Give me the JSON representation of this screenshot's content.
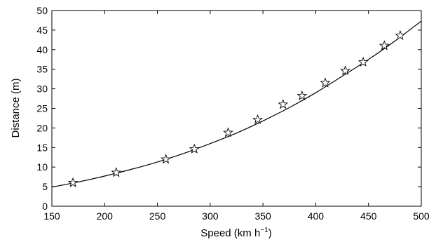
{
  "chart_data": {
    "type": "scatter",
    "xlabel": "Speed (km h",
    "xlabel_superscript": "−1",
    "xlabel_suffix": ")",
    "ylabel": "Distance (m)",
    "xlim": [
      150,
      500
    ],
    "ylim": [
      0,
      50
    ],
    "xticks": [
      150,
      200,
      250,
      300,
      350,
      400,
      450,
      500
    ],
    "yticks": [
      0,
      5,
      10,
      15,
      20,
      25,
      30,
      35,
      40,
      45,
      50
    ],
    "grid": false,
    "legend": "none",
    "series": [
      {
        "type": "scatter",
        "marker": "star",
        "points": [
          {
            "x": 170,
            "y": 6.0
          },
          {
            "x": 211,
            "y": 8.6
          },
          {
            "x": 258,
            "y": 12.0
          },
          {
            "x": 285,
            "y": 14.6
          },
          {
            "x": 317,
            "y": 18.8
          },
          {
            "x": 345,
            "y": 22.1
          },
          {
            "x": 369,
            "y": 26.0
          },
          {
            "x": 387,
            "y": 28.2
          },
          {
            "x": 409,
            "y": 31.5
          },
          {
            "x": 428,
            "y": 34.6
          },
          {
            "x": 445,
            "y": 36.8
          },
          {
            "x": 465,
            "y": 41.0
          },
          {
            "x": 480,
            "y": 43.6
          }
        ]
      },
      {
        "type": "line",
        "points": [
          {
            "x": 150,
            "y": 4.9
          },
          {
            "x": 175,
            "y": 6.2
          },
          {
            "x": 200,
            "y": 7.7
          },
          {
            "x": 225,
            "y": 9.4
          },
          {
            "x": 250,
            "y": 11.3
          },
          {
            "x": 275,
            "y": 13.5
          },
          {
            "x": 300,
            "y": 16.0
          },
          {
            "x": 325,
            "y": 18.7
          },
          {
            "x": 350,
            "y": 21.8
          },
          {
            "x": 375,
            "y": 25.2
          },
          {
            "x": 400,
            "y": 29.0
          },
          {
            "x": 425,
            "y": 33.2
          },
          {
            "x": 450,
            "y": 37.5
          },
          {
            "x": 475,
            "y": 42.2
          },
          {
            "x": 500,
            "y": 47.3
          }
        ]
      }
    ]
  }
}
